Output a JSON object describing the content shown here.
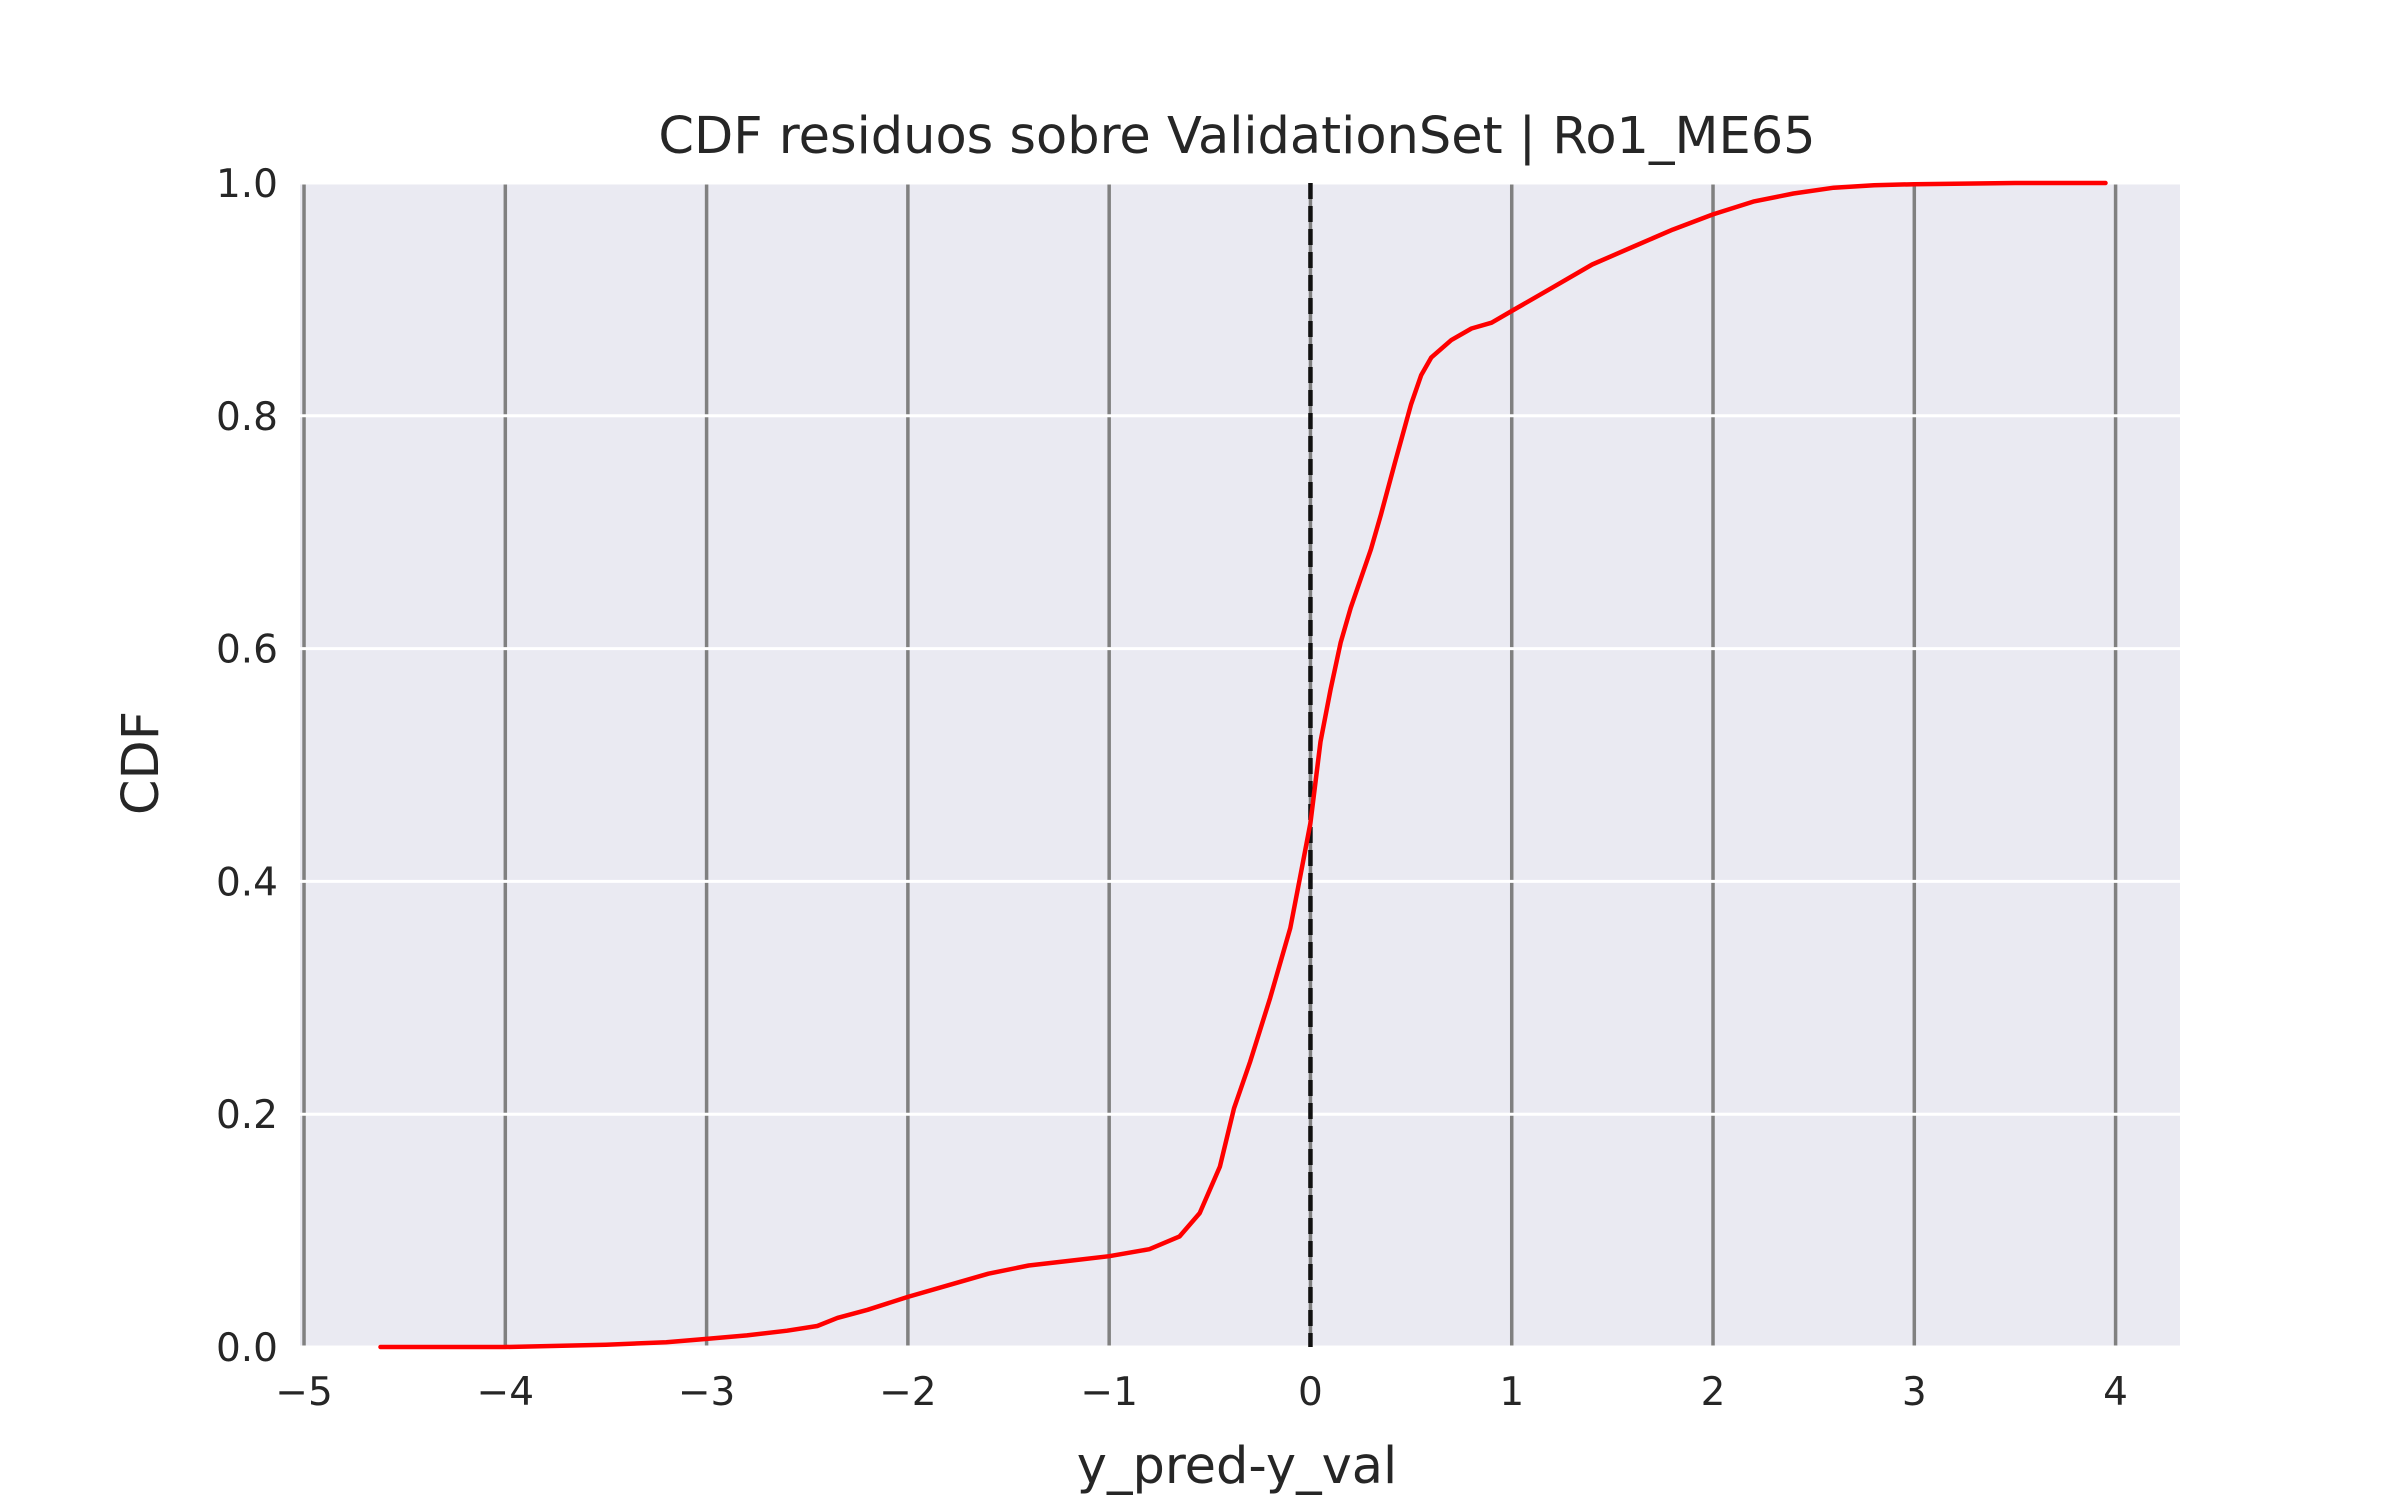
{
  "chart_data": {
    "type": "line",
    "title": "CDF residuos sobre ValidationSet | Ro1_ME65",
    "xlabel": "y_pred-y_val",
    "ylabel": "CDF",
    "xlim": [
      -5.02,
      4.32
    ],
    "ylim": [
      0,
      1
    ],
    "x_ticks": [
      -5,
      -4,
      -3,
      -2,
      -1,
      0,
      1,
      2,
      3,
      4
    ],
    "x_tick_labels": [
      "−5",
      "−4",
      "−3",
      "−2",
      "−1",
      "0",
      "1",
      "2",
      "3",
      "4"
    ],
    "y_ticks": [
      0,
      0.2,
      0.4,
      0.6,
      0.8,
      1.0
    ],
    "y_tick_labels": [
      "0.0",
      "0.2",
      "0.4",
      "0.6",
      "0.8",
      "1.0"
    ],
    "background_color": "#eaeaf2",
    "x_grid_color": "#808080",
    "y_grid_color": "#ffffff",
    "reference_line": {
      "x": 0,
      "style": "dashed",
      "color": "#111111"
    },
    "series": [
      {
        "color": "#ff0000",
        "x": [
          -4.62,
          -4.0,
          -3.5,
          -3.2,
          -3.0,
          -2.8,
          -2.6,
          -2.45,
          -2.35,
          -2.2,
          -2.0,
          -1.8,
          -1.6,
          -1.4,
          -1.2,
          -1.0,
          -0.8,
          -0.65,
          -0.55,
          -0.45,
          -0.38,
          -0.3,
          -0.2,
          -0.1,
          -0.05,
          0.0,
          0.05,
          0.1,
          0.15,
          0.2,
          0.3,
          0.35,
          0.42,
          0.5,
          0.55,
          0.6,
          0.7,
          0.8,
          0.9,
          1.0,
          1.2,
          1.4,
          1.6,
          1.8,
          2.0,
          2.2,
          2.4,
          2.6,
          2.8,
          3.0,
          3.5,
          3.95
        ],
        "y": [
          0.0,
          0.0,
          0.002,
          0.004,
          0.007,
          0.01,
          0.014,
          0.018,
          0.025,
          0.032,
          0.043,
          0.053,
          0.063,
          0.07,
          0.074,
          0.078,
          0.084,
          0.095,
          0.115,
          0.155,
          0.205,
          0.245,
          0.3,
          0.36,
          0.405,
          0.45,
          0.52,
          0.565,
          0.605,
          0.635,
          0.685,
          0.715,
          0.76,
          0.81,
          0.835,
          0.85,
          0.865,
          0.875,
          0.88,
          0.89,
          0.91,
          0.93,
          0.945,
          0.96,
          0.973,
          0.984,
          0.991,
          0.996,
          0.998,
          0.999,
          1.0,
          1.0
        ]
      }
    ]
  }
}
